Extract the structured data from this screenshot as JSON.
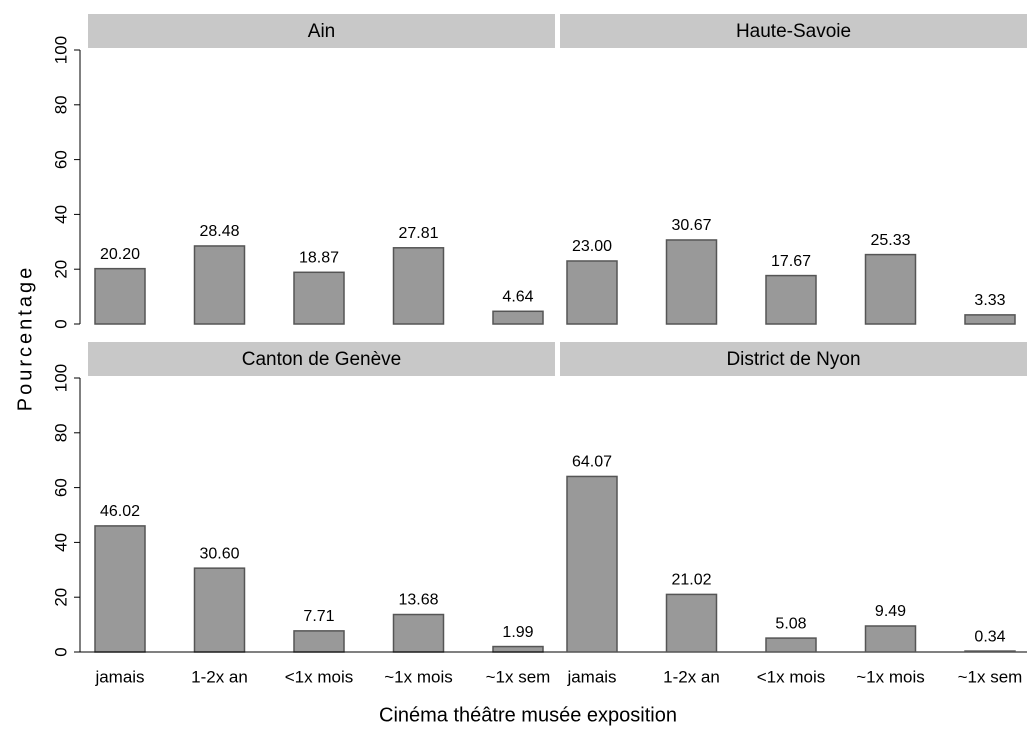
{
  "chart_data": [
    {
      "type": "bar",
      "title": "Ain",
      "categories": [
        "jamais",
        "1-2x an",
        "<1x mois",
        "~1x mois",
        "~1x sem"
      ],
      "values": [
        20.2,
        28.48,
        18.87,
        27.81,
        4.64
      ],
      "value_labels": [
        "20.20",
        "28.48",
        "18.87",
        "27.81",
        "4.64"
      ],
      "color": "#999999",
      "ylim": [
        0,
        100
      ],
      "yticks": [
        0,
        20,
        40,
        60,
        80,
        100
      ]
    },
    {
      "type": "bar",
      "title": "Haute-Savoie",
      "categories": [
        "jamais",
        "1-2x an",
        "<1x mois",
        "~1x mois",
        "~1x sem"
      ],
      "values": [
        23.0,
        30.67,
        17.67,
        25.33,
        3.33
      ],
      "value_labels": [
        "23.00",
        "30.67",
        "17.67",
        "25.33",
        "3.33"
      ],
      "color": "#999999",
      "ylim": [
        0,
        100
      ],
      "yticks": [
        0,
        20,
        40,
        60,
        80,
        100
      ]
    },
    {
      "type": "bar",
      "title": "Canton de Genève",
      "categories": [
        "jamais",
        "1-2x an",
        "<1x mois",
        "~1x mois",
        "~1x sem"
      ],
      "values": [
        46.02,
        30.6,
        7.71,
        13.68,
        1.99
      ],
      "value_labels": [
        "46.02",
        "30.60",
        "7.71",
        "13.68",
        "1.99"
      ],
      "color": "#999999",
      "ylim": [
        0,
        100
      ],
      "yticks": [
        0,
        20,
        40,
        60,
        80,
        100
      ]
    },
    {
      "type": "bar",
      "title": "District de Nyon",
      "categories": [
        "jamais",
        "1-2x an",
        "<1x mois",
        "~1x mois",
        "~1x sem"
      ],
      "values": [
        64.07,
        21.02,
        5.08,
        9.49,
        0.34
      ],
      "value_labels": [
        "64.07",
        "21.02",
        "5.08",
        "9.49",
        "0.34"
      ],
      "color": "#999999",
      "ylim": [
        0,
        100
      ],
      "yticks": [
        0,
        20,
        40,
        60,
        80,
        100
      ]
    }
  ],
  "ylabel": "Pourcentage",
  "xlabel": "Cinéma théâtre musée exposition"
}
